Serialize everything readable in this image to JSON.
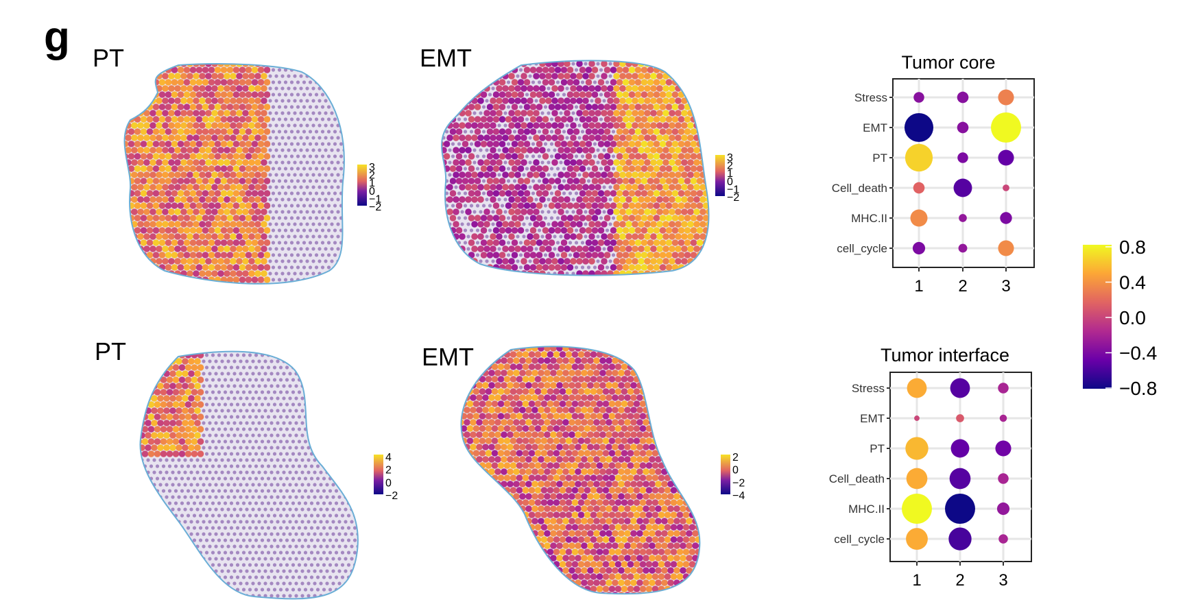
{
  "panel_letter": "g",
  "tissues": [
    {
      "id": "core",
      "maps": [
        {
          "label": "PT",
          "colorbar_ticks": [
            "3",
            "2",
            "1",
            "0",
            "−1",
            "−2"
          ],
          "hot_region": "left-center",
          "hot_level": 0.62
        },
        {
          "label": "EMT",
          "colorbar_ticks": [
            "3",
            "2",
            "1",
            "0",
            "−1",
            "−2"
          ],
          "hot_region": "right-edge",
          "hot_level": 0.55
        }
      ]
    },
    {
      "id": "interface",
      "maps": [
        {
          "label": "PT",
          "colorbar_ticks": [
            "4",
            "2",
            "0",
            "−2"
          ],
          "hot_region": "upper-left",
          "hot_level": 0.25
        },
        {
          "label": "EMT",
          "colorbar_ticks": [
            "2",
            "0",
            "−2",
            "−4"
          ],
          "hot_region": "body",
          "hot_level": 0.72
        }
      ]
    }
  ],
  "colors": {
    "outline": "#6aaed6",
    "plasma": [
      "#0d0887",
      "#6a00a8",
      "#b12a90",
      "#e16462",
      "#fca636",
      "#f0f921"
    ],
    "panel_border": "#222222",
    "grid": "#e6e6e6"
  },
  "chart_data": [
    {
      "type": "scatter",
      "kind": "dot-plot",
      "title": "Tumor core",
      "xlabel": "",
      "ylabel": "",
      "categories_x": [
        "1",
        "2",
        "3"
      ],
      "categories_y": [
        "Stress",
        "EMT",
        "PT",
        "Cell_death",
        "MHC.II",
        "cell_cycle"
      ],
      "points": [
        {
          "y": "Stress",
          "x": "1",
          "color_value": -0.35,
          "size": 0.25
        },
        {
          "y": "Stress",
          "x": "2",
          "color_value": -0.35,
          "size": 0.28
        },
        {
          "y": "Stress",
          "x": "3",
          "color_value": 0.3,
          "size": 0.45
        },
        {
          "y": "EMT",
          "x": "1",
          "color_value": -0.8,
          "size": 0.95
        },
        {
          "y": "EMT",
          "x": "2",
          "color_value": -0.35,
          "size": 0.28
        },
        {
          "y": "EMT",
          "x": "3",
          "color_value": 0.8,
          "size": 1.0
        },
        {
          "y": "PT",
          "x": "1",
          "color_value": 0.65,
          "size": 0.9
        },
        {
          "y": "PT",
          "x": "2",
          "color_value": -0.4,
          "size": 0.25
        },
        {
          "y": "PT",
          "x": "3",
          "color_value": -0.5,
          "size": 0.45
        },
        {
          "y": "Cell_death",
          "x": "1",
          "color_value": 0.15,
          "size": 0.28
        },
        {
          "y": "Cell_death",
          "x": "2",
          "color_value": -0.55,
          "size": 0.55
        },
        {
          "y": "Cell_death",
          "x": "3",
          "color_value": 0.0,
          "size": 0.1
        },
        {
          "y": "MHC.II",
          "x": "1",
          "color_value": 0.35,
          "size": 0.5
        },
        {
          "y": "MHC.II",
          "x": "2",
          "color_value": -0.3,
          "size": 0.15
        },
        {
          "y": "MHC.II",
          "x": "3",
          "color_value": -0.4,
          "size": 0.3
        },
        {
          "y": "cell_cycle",
          "x": "1",
          "color_value": -0.4,
          "size": 0.32
        },
        {
          "y": "cell_cycle",
          "x": "2",
          "color_value": -0.3,
          "size": 0.18
        },
        {
          "y": "cell_cycle",
          "x": "3",
          "color_value": 0.35,
          "size": 0.45
        }
      ]
    },
    {
      "type": "scatter",
      "kind": "dot-plot",
      "title": "Tumor interface",
      "xlabel": "",
      "ylabel": "",
      "categories_x": [
        "1",
        "2",
        "3"
      ],
      "categories_y": [
        "Stress",
        "EMT",
        "PT",
        "Cell_death",
        "MHC.II",
        "cell_cycle"
      ],
      "points": [
        {
          "y": "Stress",
          "x": "1",
          "color_value": 0.5,
          "size": 0.6
        },
        {
          "y": "Stress",
          "x": "2",
          "color_value": -0.55,
          "size": 0.6
        },
        {
          "y": "Stress",
          "x": "3",
          "color_value": -0.2,
          "size": 0.25
        },
        {
          "y": "EMT",
          "x": "1",
          "color_value": 0.0,
          "size": 0.05
        },
        {
          "y": "EMT",
          "x": "2",
          "color_value": 0.1,
          "size": 0.15
        },
        {
          "y": "EMT",
          "x": "3",
          "color_value": -0.2,
          "size": 0.12
        },
        {
          "y": "PT",
          "x": "1",
          "color_value": 0.55,
          "size": 0.72
        },
        {
          "y": "PT",
          "x": "2",
          "color_value": -0.5,
          "size": 0.55
        },
        {
          "y": "PT",
          "x": "3",
          "color_value": -0.45,
          "size": 0.45
        },
        {
          "y": "Cell_death",
          "x": "1",
          "color_value": 0.5,
          "size": 0.65
        },
        {
          "y": "Cell_death",
          "x": "2",
          "color_value": -0.55,
          "size": 0.65
        },
        {
          "y": "Cell_death",
          "x": "3",
          "color_value": -0.2,
          "size": 0.25
        },
        {
          "y": "MHC.II",
          "x": "1",
          "color_value": 0.8,
          "size": 1.0
        },
        {
          "y": "MHC.II",
          "x": "2",
          "color_value": -0.8,
          "size": 1.0
        },
        {
          "y": "MHC.II",
          "x": "3",
          "color_value": -0.3,
          "size": 0.32
        },
        {
          "y": "cell_cycle",
          "x": "1",
          "color_value": 0.5,
          "size": 0.68
        },
        {
          "y": "cell_cycle",
          "x": "2",
          "color_value": -0.6,
          "size": 0.72
        },
        {
          "y": "cell_cycle",
          "x": "3",
          "color_value": -0.2,
          "size": 0.2
        }
      ]
    }
  ],
  "colorbar": {
    "range": [
      -0.8,
      0.8
    ],
    "ticks": [
      "0.8",
      "0.4",
      "0.0",
      "−0.4",
      "−0.8"
    ]
  }
}
